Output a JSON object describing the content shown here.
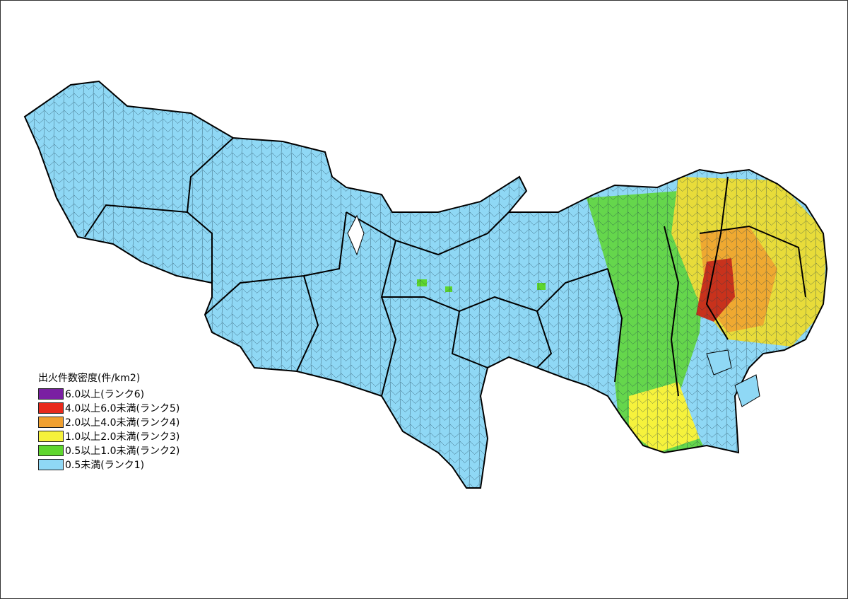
{
  "legend": {
    "title": "出火件数密度(件/km2)",
    "items": [
      {
        "label": "6.0以上(ランク6)",
        "color": "#7a1fa2"
      },
      {
        "label": "4.0以上6.0未満(ランク5)",
        "color": "#e8291c"
      },
      {
        "label": "2.0以上4.0未満(ランク4)",
        "color": "#f0a030"
      },
      {
        "label": "1.0以上2.0未満(ランク3)",
        "color": "#f6f23c"
      },
      {
        "label": "0.5以上1.0未満(ランク2)",
        "color": "#5ed62e"
      },
      {
        "label": "0.5未満(ランク1)",
        "color": "#8fd8f5"
      }
    ]
  }
}
